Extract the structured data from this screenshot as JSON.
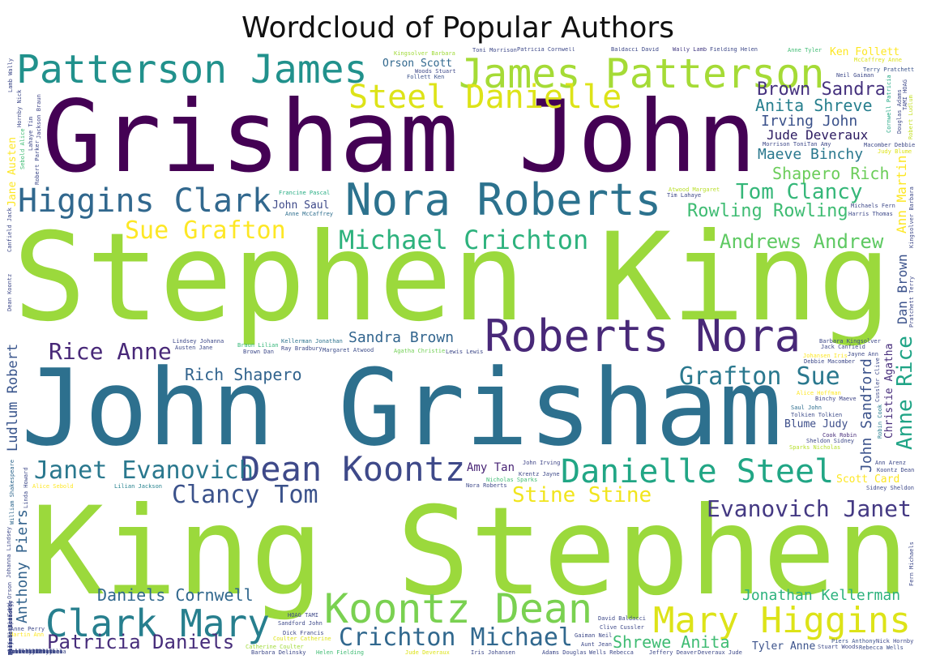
{
  "chart_data": {
    "type": "wordcloud",
    "title": "Wordcloud of Popular Authors",
    "colormap": "viridis",
    "words": [
      {
        "text": "Stephen King",
        "weight": 1.0,
        "color": "#9bd93c"
      },
      {
        "text": "King Stephen",
        "weight": 0.98,
        "color": "#9bd93c"
      },
      {
        "text": "John Grisham",
        "weight": 0.96,
        "color": "#2d708e"
      },
      {
        "text": "Grisham John",
        "weight": 0.9,
        "color": "#440154"
      },
      {
        "text": "James Patterson",
        "weight": 0.36,
        "color": "#a5db36"
      },
      {
        "text": "Patterson James",
        "weight": 0.36,
        "color": "#21918c"
      },
      {
        "text": "Nora Roberts",
        "weight": 0.4,
        "color": "#2c728e"
      },
      {
        "text": "Roberts Nora",
        "weight": 0.4,
        "color": "#482878"
      },
      {
        "text": "Koontz Dean",
        "weight": 0.36,
        "color": "#7ad151"
      },
      {
        "text": "Clark Mary",
        "weight": 0.34,
        "color": "#277f8e"
      },
      {
        "text": "Mary Higgins",
        "weight": 0.34,
        "color": "#dde318"
      },
      {
        "text": "Higgins Clark",
        "weight": 0.28,
        "color": "#31688e"
      },
      {
        "text": "Dean Koontz",
        "weight": 0.3,
        "color": "#3e4989"
      },
      {
        "text": "Danielle Steel",
        "weight": 0.3,
        "color": "#21a685"
      },
      {
        "text": "Steel Danielle",
        "weight": 0.3,
        "color": "#dde318"
      },
      {
        "text": "Grafton Sue",
        "weight": 0.24,
        "color": "#2a788e"
      },
      {
        "text": "Janet Evanovich",
        "weight": 0.22,
        "color": "#2a788e"
      },
      {
        "text": "Crichton Michael",
        "weight": 0.24,
        "color": "#31688e"
      },
      {
        "text": "Cornwell Patricia",
        "weight": 0.24,
        "color": "#22a884"
      },
      {
        "text": "Michael Crichton",
        "weight": 0.24,
        "color": "#2db27d"
      },
      {
        "text": "Sue Grafton",
        "weight": 0.2,
        "color": "#fde725"
      },
      {
        "text": "Clancy Tom",
        "weight": 0.2,
        "color": "#3b528b"
      },
      {
        "text": "Evanovich Janet",
        "weight": 0.2,
        "color": "#443983"
      },
      {
        "text": "Rice Anne",
        "weight": 0.2,
        "color": "#482878"
      },
      {
        "text": "Tom Clancy",
        "weight": 0.18,
        "color": "#35b779"
      },
      {
        "text": "Andrews Andrew",
        "weight": 0.18,
        "color": "#5ec962"
      },
      {
        "text": "Anne Rice",
        "weight": 0.18,
        "color": "#20a486"
      },
      {
        "text": "Nicholas Sparks",
        "weight": 0.16,
        "color": "#3fbc73"
      },
      {
        "text": "Sparks Nicholas",
        "weight": 0.16,
        "color": "#b5de2b"
      },
      {
        "text": "Shrewe Anita",
        "weight": 0.14,
        "color": "#3fbc73"
      },
      {
        "text": "Stine Stine",
        "weight": 0.16,
        "color": "#f1e51d"
      },
      {
        "text": "Patricia Daniels",
        "weight": 0.16,
        "color": "#472d7b"
      },
      {
        "text": "Rowling Rowling",
        "weight": 0.14,
        "color": "#3fbc73"
      },
      {
        "text": "Brown Sandra",
        "weight": 0.16,
        "color": "#46327e"
      },
      {
        "text": "Anita Shreve",
        "weight": 0.16,
        "color": "#277f8e"
      },
      {
        "text": "Daniels Cornwell",
        "weight": 0.14,
        "color": "#31688e"
      },
      {
        "text": "Jonathan Kellerman",
        "weight": 0.12,
        "color": "#2db27d"
      },
      {
        "text": "Sandra Brown",
        "weight": 0.14,
        "color": "#32658e"
      },
      {
        "text": "Rich Shapero",
        "weight": 0.14,
        "color": "#32648e"
      },
      {
        "text": "Shapero Rich",
        "weight": 0.12,
        "color": "#6ccd5a"
      },
      {
        "text": "Kellerman Jonathan",
        "weight": 0.1,
        "color": "#2c728e"
      },
      {
        "text": "Kingsolver Barbara",
        "weight": 0.1,
        "color": "#a0da39"
      },
      {
        "text": "Anthony Piers",
        "weight": 0.1,
        "color": "#33638d"
      },
      {
        "text": "Piers Anthony",
        "weight": 0.1,
        "color": "#3b528b"
      },
      {
        "text": "Maeve Binchy",
        "weight": 0.1,
        "color": "#2a788e"
      },
      {
        "text": "Binchy Maeve",
        "weight": 0.1,
        "color": "#404688"
      },
      {
        "text": "John Sandford",
        "weight": 0.1,
        "color": "#3b528b"
      },
      {
        "text": "Irving John",
        "weight": 0.1,
        "color": "#3b528b"
      },
      {
        "text": "Anne McCaffrey",
        "weight": 0.09,
        "color": "#2e6e8e"
      },
      {
        "text": "Tolkien Tolkien",
        "weight": 0.09,
        "color": "#3e4c8a"
      },
      {
        "text": "Ludlum Robert",
        "weight": 0.09,
        "color": "#39558c"
      },
      {
        "text": "Braun Lilian",
        "weight": 0.09,
        "color": "#35b779"
      },
      {
        "text": "Lilian Jackson",
        "weight": 0.09,
        "color": "#26828e"
      },
      {
        "text": "Jude Deveraux",
        "weight": 0.08,
        "color": "#2b1a60"
      },
      {
        "text": "Ann Martin",
        "weight": 0.08,
        "color": "#fde725"
      },
      {
        "text": "Agatha Christie",
        "weight": 0.08,
        "color": "#73d056"
      },
      {
        "text": "Terry Pratchett",
        "weight": 0.08,
        "color": "#3a538b"
      },
      {
        "text": "Cook Robin",
        "weight": 0.08,
        "color": "#472c7a"
      },
      {
        "text": "Dan Brown",
        "weight": 0.08,
        "color": "#3b528b"
      },
      {
        "text": "Catherine Coulter",
        "weight": 0.08,
        "color": "#a0da39"
      },
      {
        "text": "Atwood Margaret",
        "weight": 0.07,
        "color": "#b8de29"
      },
      {
        "text": "John Irving",
        "weight": 0.07,
        "color": "#404688"
      },
      {
        "text": "Jackson Braun",
        "weight": 0.07,
        "color": "#404688"
      },
      {
        "text": "Margaret Atwood",
        "weight": 0.06,
        "color": "#3d4d8a"
      },
      {
        "text": "Johansen Iris",
        "weight": 0.06,
        "color": "#fde725"
      },
      {
        "text": "McCaffrey Anne",
        "weight": 0.06,
        "color": "#dde318"
      },
      {
        "text": "Robert Ludlum",
        "weight": 0.06,
        "color": "#c2df23"
      },
      {
        "text": "Dick Francis",
        "weight": 0.06,
        "color": "#3e4989"
      },
      {
        "text": "Francine Pascal",
        "weight": 0.06,
        "color": "#25ac82"
      },
      {
        "text": "Helen Fielding",
        "weight": 0.06,
        "color": "#3fbc73"
      },
      {
        "text": "William Shakespeare",
        "weight": 0.06,
        "color": "#31688e"
      },
      {
        "text": "Rebecca Wells",
        "weight": 0.06,
        "color": "#3d4e8a"
      },
      {
        "text": "Amy Tan",
        "weight": 0.06,
        "color": "#482475"
      },
      {
        "text": "Tyler Anne",
        "weight": 0.05,
        "color": "#3b528b"
      },
      {
        "text": "Christie Agatha",
        "weight": 0.05,
        "color": "#472d7b"
      },
      {
        "text": "Orson Scott",
        "weight": 0.05,
        "color": "#31688e"
      },
      {
        "text": "Scott Card",
        "weight": 0.05,
        "color": "#fde725"
      },
      {
        "text": "Brown Dan",
        "weight": 0.05,
        "color": "#3e4a89"
      },
      {
        "text": "Robin Cook",
        "weight": 0.05,
        "color": "#287d8e"
      },
      {
        "text": "Jude Deveraux",
        "weight": 0.05,
        "color": "#dde318"
      },
      {
        "text": "Ken Follett",
        "weight": 0.05,
        "color": "#fde725"
      },
      {
        "text": "Follett Ken",
        "weight": 0.05,
        "color": "#3b528b"
      },
      {
        "text": "Lamb Wally",
        "weight": 0.05,
        "color": "#3e4a89"
      },
      {
        "text": "Wally Lamb",
        "weight": 0.05,
        "color": "#443a83"
      },
      {
        "text": "Blume Judy",
        "weight": 0.05,
        "color": "#3d4e8a"
      },
      {
        "text": "Judy Blume",
        "weight": 0.05,
        "color": "#dde318"
      },
      {
        "text": "Sebold Alice",
        "weight": 0.05,
        "color": "#3fbc73"
      },
      {
        "text": "Alice Sebold",
        "weight": 0.05,
        "color": "#fde725"
      },
      {
        "text": "Anne Tyler",
        "weight": 0.05,
        "color": "#3fbc73"
      },
      {
        "text": "Austen Jane",
        "weight": 0.05,
        "color": "#3e4a89"
      },
      {
        "text": "Jane Austen",
        "weight": 0.05,
        "color": "#fde725"
      },
      {
        "text": "Neil Gaiman",
        "weight": 0.05,
        "color": "#3e4989"
      },
      {
        "text": "John Saul",
        "weight": 0.05,
        "color": "#3e4989"
      },
      {
        "text": "Saul John",
        "weight": 0.05,
        "color": "#2e6e8e"
      },
      {
        "text": "Card Orson",
        "weight": 0.05,
        "color": "#3e4989"
      },
      {
        "text": "Coulter Catherine",
        "weight": 0.05,
        "color": "#dde318"
      },
      {
        "text": "Jack Canfield",
        "weight": 0.05,
        "color": "#3e4989"
      },
      {
        "text": "Clive Cussler",
        "weight": 0.05,
        "color": "#3e4989"
      },
      {
        "text": "Cussler Clive",
        "weight": 0.05,
        "color": "#3e4989"
      },
      {
        "text": "Sheldon Sidney",
        "weight": 0.05,
        "color": "#3e4989"
      },
      {
        "text": "Sidney Sheldon",
        "weight": 0.05,
        "color": "#3e4989"
      },
      {
        "text": "Fielding Helen",
        "weight": 0.05,
        "color": "#3e4989"
      },
      {
        "text": "Lahaye Tim",
        "weight": 0.05,
        "color": "#3e4989"
      },
      {
        "text": "Tim Lahaye",
        "weight": 0.05,
        "color": "#3e4989"
      },
      {
        "text": "Martin Ann",
        "weight": 0.05,
        "color": "#fde725"
      },
      {
        "text": "Adams Douglas",
        "weight": 0.05,
        "color": "#3e4989"
      },
      {
        "text": "Douglas Adams",
        "weight": 0.05,
        "color": "#3e4989"
      },
      {
        "text": "Alice Hoffman",
        "weight": 0.05,
        "color": "#fde725"
      },
      {
        "text": "Barbara Delinsky",
        "weight": 0.05,
        "color": "#3e4989"
      },
      {
        "text": "Barbara Kingsolver",
        "weight": 0.05,
        "color": "#3e4989"
      },
      {
        "text": "Fern Michaels",
        "weight": 0.05,
        "color": "#3e4989"
      },
      {
        "text": "Baldacci David",
        "weight": 0.05,
        "color": "#3e4989"
      },
      {
        "text": "David Baldacci",
        "weight": 0.05,
        "color": "#3e4989"
      },
      {
        "text": "HOAG TAMI",
        "weight": 0.05,
        "color": "#3e4989"
      },
      {
        "text": "TAMI HOAG",
        "weight": 0.05,
        "color": "#3e4989"
      },
      {
        "text": "Iris Johansen",
        "weight": 0.05,
        "color": "#3e4989"
      },
      {
        "text": "Patricia Cornwell",
        "weight": 0.05,
        "color": "#3e4989"
      },
      {
        "text": "Deveraux Jude",
        "weight": 0.05,
        "color": "#3e4989"
      },
      {
        "text": "Pratchett Terry",
        "weight": 0.05,
        "color": "#3e4989"
      },
      {
        "text": "Debbie Macomber",
        "weight": 0.05,
        "color": "#3e4989"
      },
      {
        "text": "Tan Amy",
        "weight": 0.05,
        "color": "#3e4989"
      },
      {
        "text": "Gaiman Neil",
        "weight": 0.05,
        "color": "#3e4989"
      },
      {
        "text": "Canfield Jack",
        "weight": 0.05,
        "color": "#3e4989"
      },
      {
        "text": "Sandford John",
        "weight": 0.05,
        "color": "#3e4989"
      },
      {
        "text": "Cornwell Patricia",
        "weight": 0.05,
        "color": "#3e4989"
      },
      {
        "text": "Nick Hornby",
        "weight": 0.05,
        "color": "#3e4989"
      },
      {
        "text": "Hornby Nick",
        "weight": 0.05,
        "color": "#3e4989"
      },
      {
        "text": "Pascal Francine",
        "weight": 0.05,
        "color": "#3e4989"
      },
      {
        "text": "Kellerman Faye",
        "weight": 0.05,
        "color": "#3e4989"
      },
      {
        "text": "Lewis Lewis",
        "weight": 0.05,
        "color": "#3e4989"
      },
      {
        "text": "Johanna Lindsey",
        "weight": 0.05,
        "color": "#3e4989"
      },
      {
        "text": "Macomber Debbie",
        "weight": 0.05,
        "color": "#3e4989"
      },
      {
        "text": "Wells Rebecca",
        "weight": 0.05,
        "color": "#3e4989"
      },
      {
        "text": "Lindsey Johanna",
        "weight": 0.05,
        "color": "#3e4989"
      },
      {
        "text": "Kingsolver Barbara",
        "weight": 0.05,
        "color": "#3e4989"
      },
      {
        "text": "Anne Perry",
        "weight": 0.05,
        "color": "#3e4989"
      },
      {
        "text": "Jayne Ann",
        "weight": 0.05,
        "color": "#3e4989"
      },
      {
        "text": "Harris Thomas",
        "weight": 0.05,
        "color": "#3e4989"
      },
      {
        "text": "Thomas Harris",
        "weight": 0.05,
        "color": "#3e4989"
      },
      {
        "text": "Ray Bradbury",
        "weight": 0.05,
        "color": "#3e4989"
      },
      {
        "text": "Steinbeck John",
        "weight": 0.05,
        "color": "#3e4989"
      },
      {
        "text": "John Steinbeck",
        "weight": 0.05,
        "color": "#3e4989"
      },
      {
        "text": "Linda Howard",
        "weight": 0.05,
        "color": "#3e4989"
      },
      {
        "text": "Jeffery Deaver",
        "weight": 0.05,
        "color": "#3e4989"
      },
      {
        "text": "Hamilton Laurell",
        "weight": 0.05,
        "color": "#3e4989"
      },
      {
        "text": "Michaels Fern",
        "weight": 0.05,
        "color": "#3e4989"
      },
      {
        "text": "Dean Koontz",
        "weight": 0.05,
        "color": "#3e4989"
      },
      {
        "text": "Stuart Woods",
        "weight": 0.05,
        "color": "#3e4989"
      },
      {
        "text": "Woods Stuart",
        "weight": 0.05,
        "color": "#3e4989"
      },
      {
        "text": "Spencer Lavyrle",
        "weight": 0.05,
        "color": "#3e4989"
      },
      {
        "text": "Lavyrle Spencer",
        "weight": 0.05,
        "color": "#3e4989"
      },
      {
        "text": "Krentz Jayne",
        "weight": 0.05,
        "color": "#3e4989"
      },
      {
        "text": "Ann Arenz",
        "weight": 0.05,
        "color": "#3e4989"
      },
      {
        "text": "Aunt Jean",
        "weight": 0.05,
        "color": "#3e4989"
      },
      {
        "text": "Hoffman Alice",
        "weight": 0.05,
        "color": "#3e4989"
      },
      {
        "text": "Bradley Marion",
        "weight": 0.05,
        "color": "#3e4989"
      },
      {
        "text": "Koontz Dean",
        "weight": 0.05,
        "color": "#3e4989"
      },
      {
        "text": "Connelly Michael",
        "weight": 0.05,
        "color": "#3e4989"
      },
      {
        "text": "Michael Connelly",
        "weight": 0.05,
        "color": "#3e4989"
      },
      {
        "text": "Morrison Toni",
        "weight": 0.05,
        "color": "#3e4989"
      },
      {
        "text": "Toni Morrison",
        "weight": 0.05,
        "color": "#3e4989"
      },
      {
        "text": "Laurell Hamilton",
        "weight": 0.05,
        "color": "#3e4989"
      },
      {
        "text": "Elizabeth George",
        "weight": 0.05,
        "color": "#3e4989"
      },
      {
        "text": "Sanders Lawrence",
        "weight": 0.05,
        "color": "#3e4989"
      },
      {
        "text": "Lawrence Sanders",
        "weight": 0.05,
        "color": "#3e4989"
      },
      {
        "text": "Parker Robert",
        "weight": 0.05,
        "color": "#3e4989"
      },
      {
        "text": "Robert Parker",
        "weight": 0.05,
        "color": "#3e4989"
      },
      {
        "text": "Gardner Erle",
        "weight": 0.05,
        "color": "#3e4989"
      },
      {
        "text": "Erle Gardner",
        "weight": 0.05,
        "color": "#3e4989"
      },
      {
        "text": "Isabel Allende",
        "weight": 0.05,
        "color": "#3e4989"
      },
      {
        "text": "Allende Isabel",
        "weight": 0.05,
        "color": "#3e4989"
      },
      {
        "text": "Frank McCourt",
        "weight": 0.05,
        "color": "#3e4989"
      },
      {
        "text": "Nora Roberts",
        "weight": 0.05,
        "color": "#3e4989"
      },
      {
        "text": "Tolkien Tolkien",
        "weight": 0.05,
        "color": "#3e4989"
      }
    ]
  }
}
